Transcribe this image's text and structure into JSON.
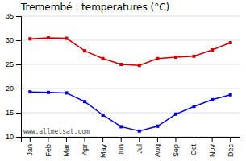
{
  "chart_data": {
    "type": "line",
    "title": "Tremembé : temperatures (°C)",
    "categories": [
      "Jan",
      "Feb",
      "Mar",
      "Apr",
      "May",
      "Jun",
      "Jul",
      "Aug",
      "Sep",
      "Oct",
      "Nov",
      "Dec"
    ],
    "series": [
      {
        "color": "#cc0000",
        "marker": "square",
        "values": [
          30.3,
          30.5,
          30.4,
          27.8,
          26.2,
          25.0,
          24.8,
          26.2,
          26.5,
          26.7,
          28.0,
          29.5
        ]
      },
      {
        "color": "#0000cc",
        "marker": "square",
        "values": [
          19.3,
          19.2,
          19.1,
          17.3,
          14.5,
          12.1,
          11.2,
          12.2,
          14.7,
          16.3,
          17.7,
          18.7
        ]
      }
    ],
    "ylim": [
      10,
      35
    ],
    "yticks": [
      10,
      15,
      20,
      25,
      30,
      35
    ],
    "grid": "y",
    "annotations": [
      "www.allmetsat.com"
    ]
  }
}
